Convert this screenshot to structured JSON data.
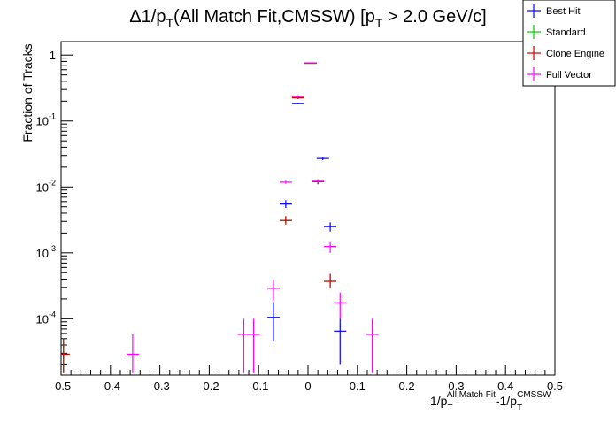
{
  "chart_data": {
    "type": "scatter",
    "title_parts": [
      "Δ1/p",
      "T",
      "(All Match Fit,CMSSW) [p",
      "T",
      " > 2.0 GeV/c]"
    ],
    "ylabel": "Fraction of Tracks",
    "xlabel_parts": [
      "1/p",
      "T",
      "All Match Fit",
      "-1/p",
      "T",
      "CMSSW"
    ],
    "xlim": [
      -0.5,
      0.5
    ],
    "ylim": [
      1.4e-05,
      1.6
    ],
    "y_scale": "log",
    "grid": false,
    "legend_position": "top-right",
    "x_ticks": [
      -0.5,
      -0.4,
      -0.3,
      -0.2,
      -0.1,
      0,
      0.1,
      0.2,
      0.3,
      0.4,
      0.5
    ],
    "x_tick_labels": [
      "-0.5",
      "-0.4",
      "-0.3",
      "-0.2",
      "-0.1",
      "0",
      "0.1",
      "0.2",
      "0.3",
      "0.4",
      "0.5"
    ],
    "y_ticks": [
      0.0001,
      0.001,
      0.01,
      0.1,
      1
    ],
    "y_tick_labels": [
      {
        "base": "10",
        "exp": "-4"
      },
      {
        "base": "10",
        "exp": "-3"
      },
      {
        "base": "10",
        "exp": "-2"
      },
      {
        "base": "10",
        "exp": "-1"
      },
      {
        "base": "1",
        "exp": ""
      }
    ],
    "bin_half_width": 0.0125,
    "series": [
      {
        "name": "Best Hit",
        "color": "#0000ff",
        "points": [
          {
            "x": -0.07,
            "y": 0.000105,
            "lo": 4.5e-05,
            "hi": 0.00018
          },
          {
            "x": -0.045,
            "y": 0.0055,
            "lo": 0.0048,
            "hi": 0.0063
          },
          {
            "x": -0.02,
            "y": 0.185,
            "lo": 0.18,
            "hi": 0.19
          },
          {
            "x": 0.005,
            "y": 0.76,
            "lo": 0.75,
            "hi": 0.77
          },
          {
            "x": 0.03,
            "y": 0.027,
            "lo": 0.0255,
            "hi": 0.0285
          },
          {
            "x": 0.045,
            "y": 0.0025,
            "lo": 0.0021,
            "hi": 0.0029
          },
          {
            "x": 0.065,
            "y": 6.5e-05,
            "lo": 2e-05,
            "hi": 0.0001
          }
        ]
      },
      {
        "name": "Standard",
        "color": "#00cc00",
        "points": [
          {
            "x": -0.495,
            "y": 2.9e-05,
            "lo": 1.5e-05,
            "hi": 5e-05
          },
          {
            "x": -0.045,
            "y": 0.0031,
            "lo": 0.0027,
            "hi": 0.0036
          },
          {
            "x": -0.02,
            "y": 0.225,
            "lo": 0.215,
            "hi": 0.235
          },
          {
            "x": 0.005,
            "y": 0.75,
            "lo": 0.74,
            "hi": 0.76
          },
          {
            "x": 0.02,
            "y": 0.012,
            "lo": 0.011,
            "hi": 0.013
          },
          {
            "x": 0.045,
            "y": 0.00037,
            "lo": 0.0003,
            "hi": 0.00048
          }
        ]
      },
      {
        "name": "Clone Engine",
        "color": "#cc0000",
        "points": [
          {
            "x": -0.495,
            "y": 2.9e-05,
            "lo": 1.5e-05,
            "hi": 5e-05
          },
          {
            "x": -0.045,
            "y": 0.0031,
            "lo": 0.0027,
            "hi": 0.0036
          },
          {
            "x": -0.02,
            "y": 0.225,
            "lo": 0.215,
            "hi": 0.235
          },
          {
            "x": 0.005,
            "y": 0.75,
            "lo": 0.74,
            "hi": 0.76
          },
          {
            "x": 0.02,
            "y": 0.012,
            "lo": 0.011,
            "hi": 0.013
          },
          {
            "x": 0.045,
            "y": 0.00037,
            "lo": 0.0003,
            "hi": 0.00048
          }
        ]
      },
      {
        "name": "Full Vector",
        "color": "#ff00ff",
        "points": [
          {
            "x": -0.355,
            "y": 2.9e-05,
            "lo": 1.5e-05,
            "hi": 5.8e-05
          },
          {
            "x": -0.13,
            "y": 5.8e-05,
            "lo": 1.5e-05,
            "hi": 0.0001
          },
          {
            "x": -0.11,
            "y": 5.8e-05,
            "lo": 1.5e-05,
            "hi": 0.0001
          },
          {
            "x": -0.07,
            "y": 0.00029,
            "lo": 0.00019,
            "hi": 0.00039
          },
          {
            "x": -0.045,
            "y": 0.0118,
            "lo": 0.0112,
            "hi": 0.0124
          },
          {
            "x": -0.02,
            "y": 0.235,
            "lo": 0.225,
            "hi": 0.245
          },
          {
            "x": 0.005,
            "y": 0.76,
            "lo": 0.75,
            "hi": 0.77
          },
          {
            "x": 0.02,
            "y": 0.0122,
            "lo": 0.0115,
            "hi": 0.0129
          },
          {
            "x": 0.045,
            "y": 0.00125,
            "lo": 0.001,
            "hi": 0.0015
          },
          {
            "x": 0.065,
            "y": 0.000175,
            "lo": 0.0001,
            "hi": 0.00025
          },
          {
            "x": 0.13,
            "y": 5.8e-05,
            "lo": 1.5e-05,
            "hi": 0.0001
          }
        ]
      }
    ]
  }
}
